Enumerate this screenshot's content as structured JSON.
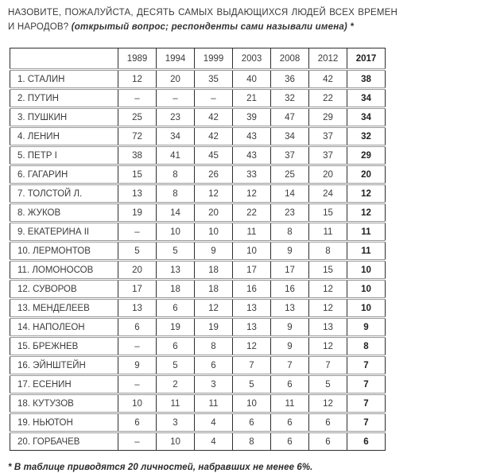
{
  "page": {
    "title_question": "НАЗОВИТЕ, ПОЖАЛУЙСТА, ДЕСЯТЬ САМЫХ ВЫДАЮЩИХСЯ ЛЮДЕЙ ВСЕХ ВРЕМЕН И НАРОДОВ?",
    "title_note": "(открытый вопрос; респонденты сами называли имена) *",
    "footnote": "* В таблице приводятся 20 личностей, набравших не менее 6%."
  },
  "colors": {
    "border_dark": "#2d2d2d",
    "separator_gray": "#989898",
    "text": "#3c3c3c"
  },
  "chart_data": {
    "type": "table",
    "columns": [
      "",
      "1989",
      "1994",
      "1999",
      "2003",
      "2008",
      "2012",
      "2017"
    ],
    "highlight_column": "2017",
    "rows": [
      {
        "name": "1. СТАЛИН",
        "values": [
          "12",
          "20",
          "35",
          "40",
          "36",
          "42",
          "38"
        ]
      },
      {
        "name": "2. ПУТИН",
        "values": [
          "–",
          "–",
          "–",
          "21",
          "32",
          "22",
          "34"
        ]
      },
      {
        "name": "3. ПУШКИН",
        "values": [
          "25",
          "23",
          "42",
          "39",
          "47",
          "29",
          "34"
        ]
      },
      {
        "name": "4. ЛЕНИН",
        "values": [
          "72",
          "34",
          "42",
          "43",
          "34",
          "37",
          "32"
        ]
      },
      {
        "name": "5. ПЕТР I",
        "values": [
          "38",
          "41",
          "45",
          "43",
          "37",
          "37",
          "29"
        ]
      },
      {
        "name": "6. ГАГАРИН",
        "values": [
          "15",
          "8",
          "26",
          "33",
          "25",
          "20",
          "20"
        ]
      },
      {
        "name": "7. ТОЛСТОЙ Л.",
        "values": [
          "13",
          "8",
          "12",
          "12",
          "14",
          "24",
          "12"
        ]
      },
      {
        "name": "8. ЖУКОВ",
        "values": [
          "19",
          "14",
          "20",
          "22",
          "23",
          "15",
          "12"
        ]
      },
      {
        "name": "9. ЕКАТЕРИНА II",
        "values": [
          "–",
          "10",
          "10",
          "11",
          "8",
          "11",
          "11"
        ]
      },
      {
        "name": "10. ЛЕРМОНТОВ",
        "values": [
          "5",
          "5",
          "9",
          "10",
          "9",
          "8",
          "11"
        ]
      },
      {
        "name": "11. ЛОМОНОСОВ",
        "values": [
          "20",
          "13",
          "18",
          "17",
          "17",
          "15",
          "10"
        ]
      },
      {
        "name": "12. СУВОРОВ",
        "values": [
          "17",
          "18",
          "18",
          "16",
          "16",
          "12",
          "10"
        ]
      },
      {
        "name": "13. МЕНДЕЛЕЕВ",
        "values": [
          "13",
          "6",
          "12",
          "13",
          "13",
          "12",
          "10"
        ]
      },
      {
        "name": "14. НАПОЛЕОН",
        "values": [
          "6",
          "19",
          "19",
          "13",
          "9",
          "13",
          "9"
        ]
      },
      {
        "name": "15. БРЕЖНЕВ",
        "values": [
          "–",
          "6",
          "8",
          "12",
          "9",
          "12",
          "8"
        ]
      },
      {
        "name": "16. ЭЙНШТЕЙН",
        "values": [
          "9",
          "5",
          "6",
          "7",
          "7",
          "7",
          "7"
        ]
      },
      {
        "name": "17. ЕСЕНИН",
        "values": [
          "–",
          "2",
          "3",
          "5",
          "6",
          "5",
          "7"
        ]
      },
      {
        "name": "18. КУТУЗОВ",
        "values": [
          "10",
          "11",
          "11",
          "10",
          "11",
          "12",
          "7"
        ]
      },
      {
        "name": "19. НЬЮТОН",
        "values": [
          "6",
          "3",
          "4",
          "6",
          "6",
          "6",
          "7"
        ]
      },
      {
        "name": "20. ГОРБАЧЕВ",
        "values": [
          "–",
          "10",
          "4",
          "8",
          "6",
          "6",
          "6"
        ]
      }
    ]
  }
}
